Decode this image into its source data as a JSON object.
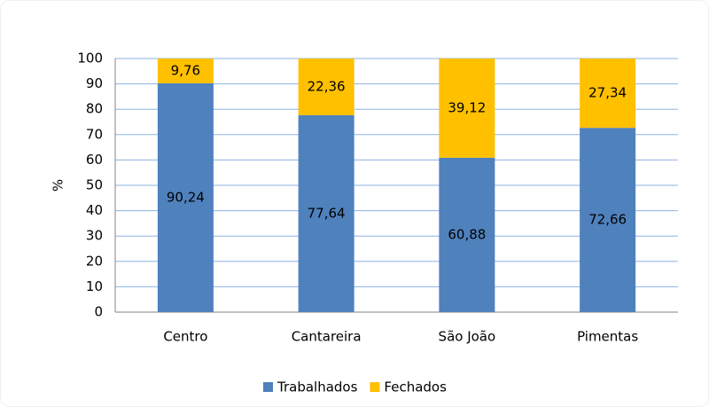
{
  "chart_data": {
    "type": "stacked_bar",
    "categories": [
      "Centro",
      "Cantareira",
      "São João",
      "Pimentas"
    ],
    "series": [
      {
        "name": "Trabalhados",
        "color": "#4f81bd",
        "values": [
          90.24,
          77.64,
          60.88,
          72.66
        ],
        "value_labels": [
          "90,24",
          "77,64",
          "60,88",
          "72,66"
        ]
      },
      {
        "name": "Fechados",
        "color": "#ffc000",
        "values": [
          9.76,
          22.36,
          39.12,
          27.34
        ],
        "value_labels": [
          "9,76",
          "22,36",
          "39,12",
          "27,34"
        ]
      }
    ],
    "ylabel": "%",
    "ylim": [
      0,
      100
    ],
    "yticks": [
      0,
      10,
      20,
      30,
      40,
      50,
      60,
      70,
      80,
      90,
      100
    ],
    "grid": true,
    "legend": "bottom"
  }
}
